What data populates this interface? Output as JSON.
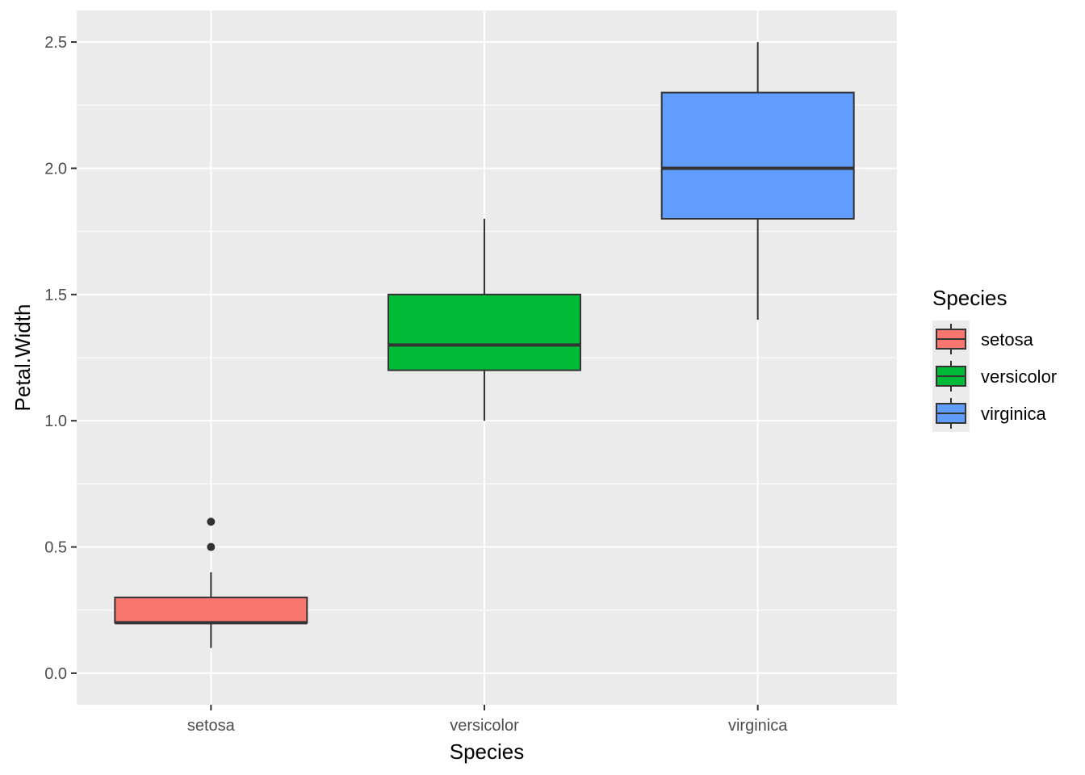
{
  "chart_data": {
    "type": "box",
    "xlabel": "Species",
    "ylabel": "Petal.Width",
    "ylim": [
      -0.125,
      2.625
    ],
    "yticks": [
      "0.0",
      "0.5",
      "1.0",
      "1.5",
      "2.0",
      "2.5"
    ],
    "ytick_values": [
      0.0,
      0.5,
      1.0,
      1.5,
      2.0,
      2.5
    ],
    "categories": [
      "setosa",
      "versicolor",
      "virginica"
    ],
    "series": [
      {
        "name": "setosa",
        "color": "#F8766D",
        "whisker_low": 0.1,
        "q1": 0.2,
        "median": 0.2,
        "q3": 0.3,
        "whisker_high": 0.4,
        "outliers": [
          0.5,
          0.6
        ]
      },
      {
        "name": "versicolor",
        "color": "#00BA38",
        "whisker_low": 1.0,
        "q1": 1.2,
        "median": 1.3,
        "q3": 1.5,
        "whisker_high": 1.8,
        "outliers": []
      },
      {
        "name": "virginica",
        "color": "#619CFF",
        "whisker_low": 1.4,
        "q1": 1.8,
        "median": 2.0,
        "q3": 2.3,
        "whisker_high": 2.5,
        "outliers": []
      }
    ],
    "legend": {
      "title": "Species",
      "placement": "right",
      "entries": [
        "setosa",
        "versicolor",
        "virginica"
      ]
    },
    "grid": true,
    "panel_background": "#EBEBEB",
    "grid_color": "#FFFFFF",
    "outline_color": "#333333"
  }
}
